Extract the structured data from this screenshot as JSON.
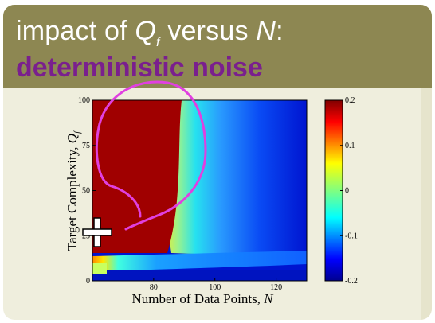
{
  "slide": {
    "title_prefix": "impact of ",
    "title_var_q": "Q",
    "title_var_sub": "f",
    "title_mid": " versus ",
    "title_var_n": "N",
    "title_suffix": ":",
    "subtitle": "deterministic noise"
  },
  "colors": {
    "header_bg": "#8d8752",
    "subtitle": "#7a1f8e",
    "slide_bg": "#efeedd",
    "annotation": "#e040e0"
  },
  "chart_data": {
    "type": "heatmap",
    "xlabel": "Number of Data Points, N",
    "ylabel": "Target Complexity, Qf",
    "xlabel_text": "Number of Data Points, ",
    "xlabel_var": "N",
    "ylabel_text": "Target Complexity, ",
    "ylabel_var": "Q",
    "ylabel_sub": "f",
    "x_ticks": [
      "80",
      "100",
      "120"
    ],
    "y_ticks": [
      "0",
      "25",
      "50",
      "75",
      "100"
    ],
    "xlim": [
      60,
      130
    ],
    "ylim": [
      0,
      100
    ],
    "colorbar": {
      "ticks": [
        "0.2",
        "0.1",
        "0",
        "-0.1",
        "-0.2"
      ],
      "range": [
        -0.2,
        0.2
      ],
      "colormap": "jet"
    }
  },
  "annotation": {
    "icon": "move-cursor-icon"
  }
}
